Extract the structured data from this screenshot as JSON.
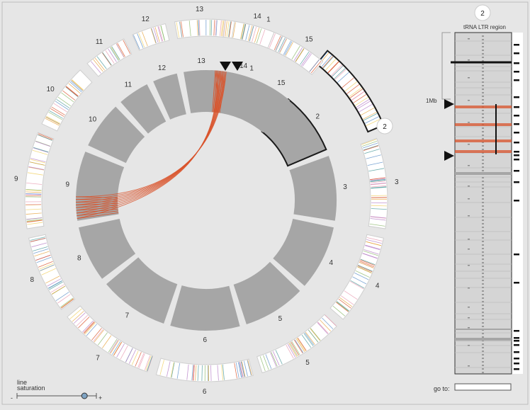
{
  "outer_ring_labels": [
    "15",
    "14",
    "13",
    "12",
    "11",
    "10",
    "9",
    "8",
    "7",
    "6",
    "5",
    "4",
    "3",
    "2",
    "1"
  ],
  "inner_ring_labels": [
    "15",
    "14",
    "13",
    "12",
    "11",
    "10",
    "9",
    "8",
    "7",
    "6",
    "5",
    "4",
    "3",
    "2",
    "1"
  ],
  "selected_marker": "2",
  "detail_panel": {
    "chromosome": "2",
    "col_headers": [
      "tRNA",
      "LTR region"
    ],
    "scale_label": "1Mb"
  },
  "controls": {
    "line_saturation_label_1": "line",
    "line_saturation_label_2": "saturation",
    "minus": "-",
    "plus": "+",
    "saturation_value": 0.85,
    "goto_label": "go to:",
    "goto_value": ""
  },
  "colors": {
    "background": "#e6e6e6",
    "ring_segment": "#a6a6a6",
    "link_lines": "#d9532b",
    "selection_outline": "#1a1a1a"
  }
}
